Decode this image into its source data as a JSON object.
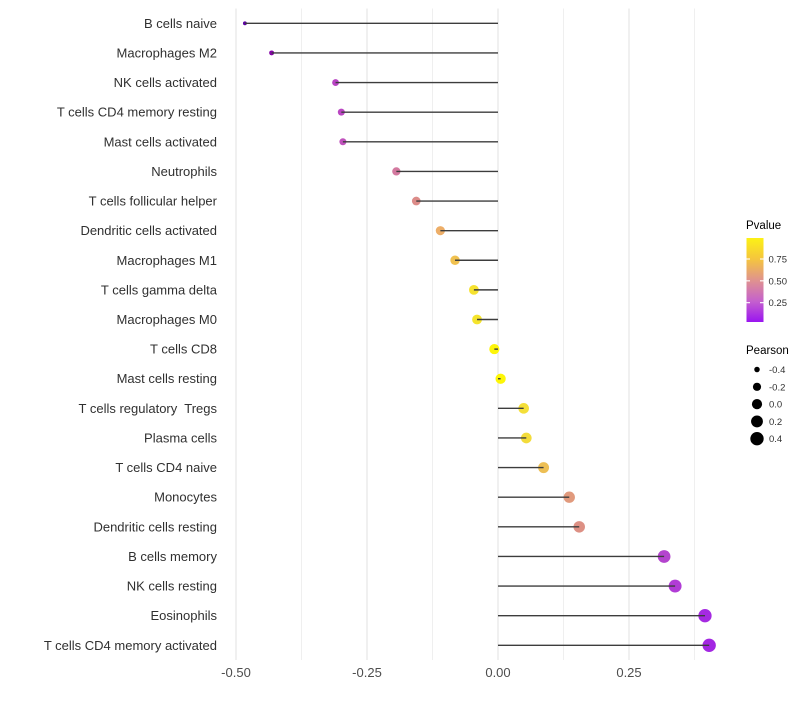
{
  "figure": {
    "background": "#ffffff",
    "title": ""
  },
  "chart_data": {
    "type": "scatter",
    "variant": "lollipop",
    "orientation": "horizontal",
    "title": "",
    "xlabel": "",
    "ylabel": "",
    "xlim": [
      -0.527,
      0.447
    ],
    "grid": "vertical-only",
    "baseline_x": 0,
    "x_major_ticks": [
      -0.5,
      -0.25,
      0.0,
      0.25
    ],
    "x_tick_labels": [
      "-0.50",
      "-0.25",
      "0.00",
      "0.25"
    ],
    "x_minor_ticks": [
      -0.375,
      -0.125,
      0.125,
      0.375
    ],
    "stem_color": "#3d3d3d",
    "grid_major_color": "#e2e2e2",
    "grid_minor_color": "#efefef",
    "rows": [
      {
        "label": "B cells naive",
        "pearson": -0.483,
        "pvalue_approx": 0.03,
        "color": "#5c01a3"
      },
      {
        "label": "Macrophages M2",
        "pearson": -0.432,
        "pvalue_approx": 0.1,
        "color": "#8405a7"
      },
      {
        "label": "NK cells activated",
        "pearson": -0.31,
        "pvalue_approx": 0.28,
        "color": "#b843c3"
      },
      {
        "label": "T cells CD4 memory resting",
        "pearson": -0.299,
        "pvalue_approx": 0.29,
        "color": "#ba46c2"
      },
      {
        "label": "Mast cells activated",
        "pearson": -0.296,
        "pvalue_approx": 0.31,
        "color": "#c052bd"
      },
      {
        "label": "Neutrophils",
        "pearson": -0.194,
        "pvalue_approx": 0.46,
        "color": "#d3799f"
      },
      {
        "label": "T cells follicular helper",
        "pearson": -0.156,
        "pvalue_approx": 0.5,
        "color": "#dc8c89"
      },
      {
        "label": "Dendritic cells activated",
        "pearson": -0.11,
        "pvalue_approx": 0.64,
        "color": "#edae68"
      },
      {
        "label": "Macrophages M1",
        "pearson": -0.082,
        "pvalue_approx": 0.7,
        "color": "#f0c150"
      },
      {
        "label": "T cells gamma delta",
        "pearson": -0.046,
        "pvalue_approx": 0.82,
        "color": "#f6e22f"
      },
      {
        "label": "Macrophages M0",
        "pearson": -0.04,
        "pvalue_approx": 0.83,
        "color": "#f5e42c"
      },
      {
        "label": "T cells CD8",
        "pearson": -0.007,
        "pvalue_approx": 0.95,
        "color": "#fdf50a"
      },
      {
        "label": "Mast cells resting",
        "pearson": 0.005,
        "pvalue_approx": 0.96,
        "color": "#fdf607"
      },
      {
        "label": "T cells regulatory  Tregs",
        "pearson": 0.049,
        "pvalue_approx": 0.8,
        "color": "#f4df39"
      },
      {
        "label": "Plasma cells",
        "pearson": 0.054,
        "pvalue_approx": 0.8,
        "color": "#f3dc3b"
      },
      {
        "label": "T cells CD4 naive",
        "pearson": 0.087,
        "pvalue_approx": 0.69,
        "color": "#edbf55"
      },
      {
        "label": "Monocytes",
        "pearson": 0.136,
        "pvalue_approx": 0.53,
        "color": "#e19a7d"
      },
      {
        "label": "Dendritic cells resting",
        "pearson": 0.155,
        "pvalue_approx": 0.5,
        "color": "#dd9084"
      },
      {
        "label": "B cells memory",
        "pearson": 0.317,
        "pvalue_approx": 0.27,
        "color": "#b444ce"
      },
      {
        "label": "NK cells resting",
        "pearson": 0.338,
        "pvalue_approx": 0.24,
        "color": "#b13cd6"
      },
      {
        "label": "Eosinophils",
        "pearson": 0.395,
        "pvalue_approx": 0.13,
        "color": "#a52ae1"
      },
      {
        "label": "T cells CD4 memory activated",
        "pearson": 0.403,
        "pvalue_approx": 0.12,
        "color": "#a327e2"
      }
    ],
    "legend_pvalue": {
      "title": "Pvalue",
      "tick_labels": [
        "0.75",
        "0.50",
        "0.25"
      ],
      "tick_fractions_from_top": [
        0.25,
        0.51,
        0.77
      ],
      "range_approx": [
        0.03,
        0.99
      ],
      "gradient_top_to_bottom": [
        "#fcf115",
        "#f5c53e",
        "#e0938e",
        "#c561cd",
        "#9a15f0"
      ]
    },
    "legend_pearson": {
      "title": "Pearson",
      "entries": [
        {
          "label": "-0.4",
          "value": -0.4
        },
        {
          "label": "-0.2",
          "value": -0.2
        },
        {
          "label": "0.0",
          "value": 0.0
        },
        {
          "label": "0.2",
          "value": 0.2
        },
        {
          "label": "0.4",
          "value": 0.4
        }
      ],
      "dot_color": "#000000"
    }
  }
}
